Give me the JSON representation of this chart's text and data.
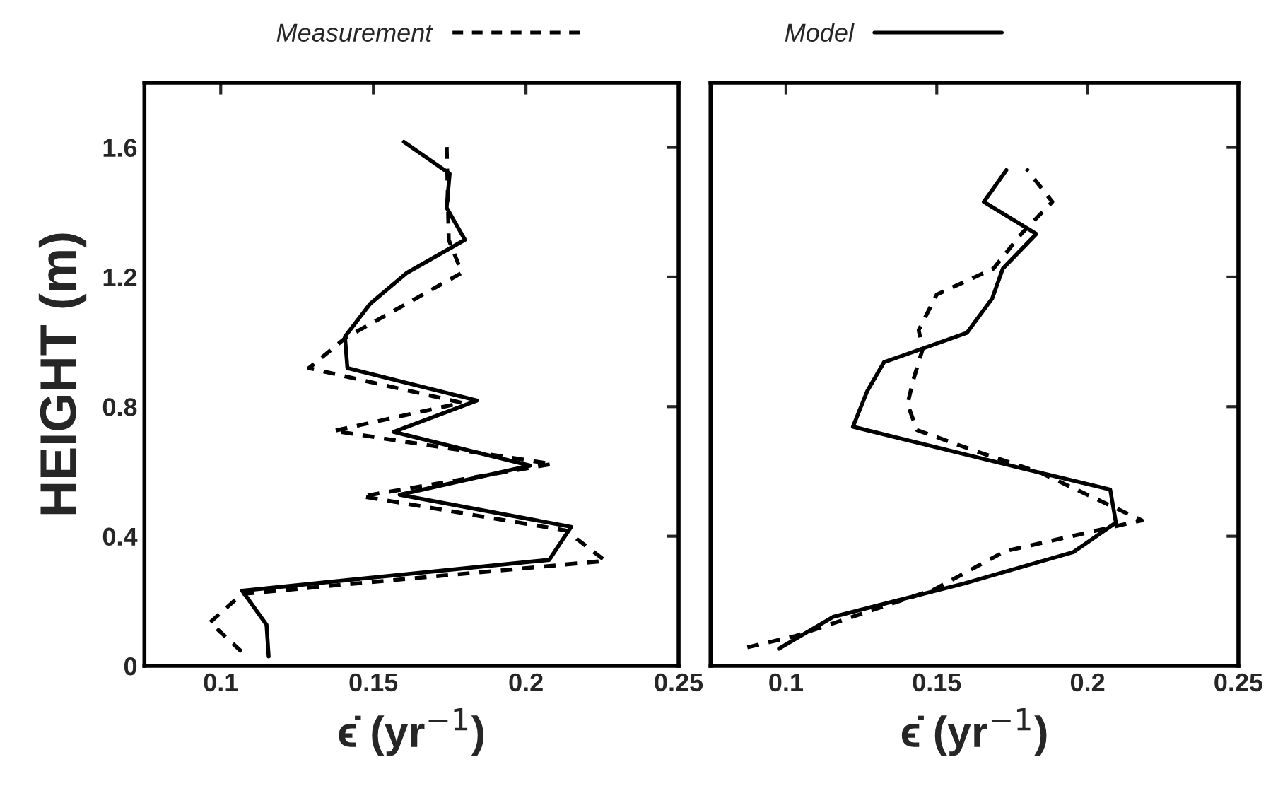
{
  "chart_data": [
    {
      "type": "line",
      "ylabel": "HEIGHT (m)",
      "xlabel": "ϵ̇ (yr$^{−1}$)",
      "xlim": [
        0.075,
        0.25
      ],
      "xticks": [
        0.1,
        0.15,
        0.2,
        0.25
      ],
      "ylim": [
        0,
        1.8
      ],
      "yticks": [
        0,
        0.4,
        0.8,
        1.2,
        1.6
      ],
      "grid": false,
      "legend": "top",
      "marker": "none",
      "series": [
        {
          "name": "Measurement",
          "color": "#000000",
          "line_style": "dashed",
          "x": [
            0.1068,
            0.0965,
            0.107,
            0.226,
            0.213,
            0.1463,
            0.2086,
            0.137,
            0.179,
            0.1289,
            0.141,
            0.179,
            0.1747,
            0.174
          ],
          "values": [
            0.044,
            0.134,
            0.222,
            0.324,
            0.418,
            0.523,
            0.623,
            0.725,
            0.812,
            0.919,
            1.013,
            1.213,
            1.315,
            1.614
          ]
        },
        {
          "name": "Model",
          "color": "#000000",
          "line_style": "solid",
          "x": [
            0.1157,
            0.115,
            0.107,
            0.2076,
            0.2148,
            0.1586,
            0.2014,
            0.1566,
            0.184,
            0.1415,
            0.1407,
            0.149,
            0.161,
            0.18,
            0.174,
            0.175,
            0.16
          ],
          "values": [
            0.029,
            0.127,
            0.232,
            0.327,
            0.429,
            0.528,
            0.618,
            0.722,
            0.819,
            0.919,
            1.016,
            1.118,
            1.213,
            1.315,
            1.414,
            1.519,
            1.617
          ]
        }
      ]
    },
    {
      "type": "line",
      "xlabel": "ϵ̇ (yr$^{−1}$)",
      "xlim": [
        0.075,
        0.25
      ],
      "xticks": [
        0.1,
        0.15,
        0.2,
        0.25
      ],
      "ylim": [
        0,
        1.8
      ],
      "yticks": [
        0,
        0.4,
        0.8,
        1.2,
        1.6
      ],
      "tick_labels": "x",
      "grid": false,
      "marker": "none",
      "series": [
        {
          "name": "Measurement",
          "color": "#000000",
          "line_style": "dashed",
          "x": [
            0.0872,
            0.1031,
            0.1492,
            0.1727,
            0.218,
            0.1844,
            0.1625,
            0.1434,
            0.1403,
            0.1422,
            0.1453,
            0.144,
            0.15,
            0.1688,
            0.178,
            0.1883,
            0.1797
          ],
          "values": [
            0.057,
            0.092,
            0.236,
            0.354,
            0.449,
            0.596,
            0.664,
            0.728,
            0.808,
            0.882,
            0.977,
            1.036,
            1.146,
            1.226,
            1.333,
            1.432,
            1.534
          ]
        },
        {
          "name": "Model",
          "color": "#000000",
          "line_style": "solid",
          "x": [
            0.0977,
            0.1156,
            0.159,
            0.1953,
            0.2094,
            0.2075,
            0.178,
            0.1222,
            0.127,
            0.1325,
            0.16,
            0.1684,
            0.1719,
            0.183,
            0.1656,
            0.1731
          ],
          "values": [
            0.053,
            0.151,
            0.254,
            0.351,
            0.442,
            0.544,
            0.61,
            0.738,
            0.849,
            0.937,
            1.028,
            1.134,
            1.226,
            1.333,
            1.432,
            1.53
          ]
        }
      ]
    }
  ]
}
